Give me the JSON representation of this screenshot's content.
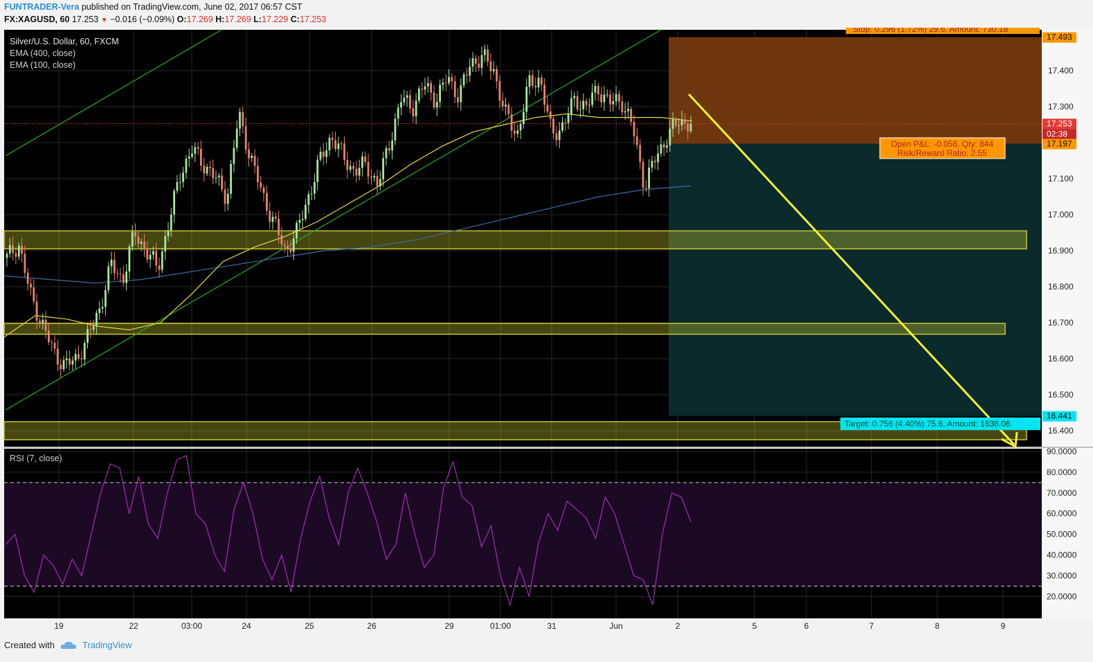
{
  "header": {
    "author": "FUNTRADER-Vera",
    "published": "published on TradingView.com, June 02, 2017 06:57 CST",
    "symbol": "FX:XAGUSD, 60",
    "price": "17.253",
    "change": "−0.016 (−0.09%)",
    "o_label": "O:",
    "o_val": "17.269",
    "h_label": "H:",
    "h_val": "17.269",
    "l_label": "L:",
    "l_val": "17.229",
    "c_label": "C:",
    "c_val": "17.253"
  },
  "legend": {
    "series": "Silver/U.S. Dollar, 60, FXCM",
    "ema400": "EMA (400, close)",
    "ema100": "EMA (100, close)",
    "rsi": "RSI (7, close)"
  },
  "position": {
    "stop_label": "Stop: 0.296 (1.72%) 29.6, Amount: 730.18",
    "pnl_label": "Open P&L: -0.056, Qty: 844",
    "rr_label": "Risk/Reward Ratio: 2.55",
    "target_label": "Target: 0.756 (4.40%) 75.6, Amount: 1638.06",
    "stop_price": "17.493",
    "entry_price": "17.197",
    "target_price": "16.441",
    "current_price": "17.253",
    "countdown": "02:38"
  },
  "colors": {
    "background": "#000000",
    "up_candle": "#a8e6a0",
    "down_candle": "#e8836b",
    "ema100": "#e8df3c",
    "ema400": "#3a6fa8",
    "trend_line": "#21b021",
    "zone": "#c9c832",
    "arrow": "#f3f32e",
    "stop_zone": "#7a3c10",
    "target_zone": "#0b2a2c",
    "rsi_line": "#a12fb5",
    "rsi_band": "#1c0a24",
    "target_tag": "#00e5f0",
    "stop_tag": "#ff9800"
  },
  "chart_data": [
    {
      "type": "candlestick",
      "title": "Silver/U.S. Dollar, 60, FXCM",
      "x_ticks": [
        "19",
        "22",
        "03:00",
        "24",
        "25",
        "26",
        "29",
        "01:00",
        "31",
        "Jun",
        "2",
        "5",
        "6",
        "7",
        "8",
        "9"
      ],
      "y_ticks": [
        "17.400",
        "17.300",
        "17.100",
        "17.000",
        "16.900",
        "16.800",
        "16.700",
        "16.600",
        "16.500",
        "16.400"
      ],
      "ylim": [
        16.36,
        17.53
      ],
      "close_path": [
        16.88,
        16.92,
        16.78,
        16.7,
        16.62,
        16.58,
        16.6,
        16.66,
        16.74,
        16.86,
        16.82,
        16.95,
        16.9,
        16.85,
        16.98,
        17.12,
        17.18,
        17.14,
        17.1,
        17.05,
        17.28,
        17.16,
        17.06,
        16.98,
        16.9,
        16.95,
        17.05,
        17.15,
        17.22,
        17.16,
        17.12,
        17.14,
        17.08,
        17.2,
        17.32,
        17.3,
        17.36,
        17.32,
        17.38,
        17.33,
        17.42,
        17.44,
        17.4,
        17.28,
        17.22,
        17.36,
        17.38,
        17.22,
        17.25,
        17.32,
        17.3,
        17.35,
        17.31,
        17.32,
        17.24,
        17.08,
        17.16,
        17.22,
        17.26,
        17.253
      ],
      "series": [
        {
          "name": "EMA (100, close)",
          "values": [
            16.66,
            16.72,
            16.71,
            16.69,
            16.68,
            16.7,
            16.78,
            16.87,
            16.91,
            16.94,
            16.98,
            17.03,
            17.08,
            17.14,
            17.19,
            17.23,
            17.25,
            17.27,
            17.28,
            17.27,
            17.27,
            17.27,
            17.26
          ]
        },
        {
          "name": "EMA (400, close)",
          "values": [
            16.83,
            16.82,
            16.81,
            16.82,
            16.84,
            16.86,
            16.88,
            16.9,
            16.91,
            16.93,
            16.96,
            16.99,
            17.02,
            17.05,
            17.07,
            17.08
          ]
        }
      ],
      "annotations": [
        "Stop: 0.296 (1.72%) 29.6, Amount: 730.18",
        "Open P&L: -0.056, Qty: 844",
        "Risk/Reward Ratio: 2.55",
        "Target: 0.756 (4.40%) 75.6, Amount: 1638.06"
      ]
    },
    {
      "type": "line",
      "title": "RSI (7, close)",
      "y_ticks": [
        "90.0000",
        "80.0000",
        "70.0000",
        "60.0000",
        "50.0000",
        "40.0000",
        "30.0000",
        "20.0000"
      ],
      "ylim": [
        10,
        90
      ],
      "bands": [
        25,
        75
      ],
      "values": [
        45,
        50,
        30,
        22,
        40,
        35,
        26,
        38,
        30,
        50,
        70,
        84,
        82,
        60,
        78,
        55,
        48,
        70,
        86,
        88,
        60,
        55,
        40,
        32,
        62,
        75,
        60,
        38,
        28,
        40,
        22,
        48,
        66,
        78,
        58,
        45,
        70,
        82,
        70,
        56,
        38,
        45,
        70,
        50,
        34,
        40,
        72,
        85,
        68,
        64,
        44,
        54,
        30,
        16,
        34,
        20,
        46,
        60,
        52,
        66,
        62,
        58,
        48,
        68,
        60,
        45,
        30,
        28,
        16,
        50,
        70,
        68,
        56
      ]
    }
  ]
}
